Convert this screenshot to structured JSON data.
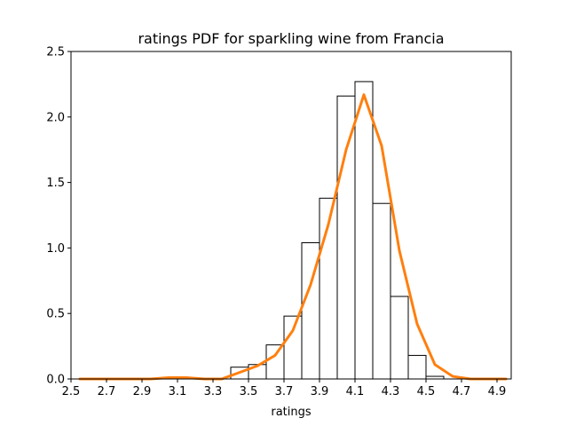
{
  "chart_data": {
    "type": "line",
    "title": "ratings PDF for sparkling wine from Francia",
    "xlabel": "ratings",
    "ylabel": "",
    "xlim": [
      2.5,
      4.98
    ],
    "ylim": [
      0,
      2.5
    ],
    "xticks": [
      "2.5",
      "2.7",
      "2.9",
      "3.1",
      "3.3",
      "3.5",
      "3.7",
      "3.9",
      "4.1",
      "4.3",
      "4.5",
      "4.7",
      "4.9"
    ],
    "yticks": [
      "0.0",
      "0.5",
      "1.0",
      "1.5",
      "2.0",
      "2.5"
    ],
    "histogram": {
      "edges": [
        3.4,
        3.5,
        3.6,
        3.7,
        3.8,
        3.9,
        4.0,
        4.1,
        4.2,
        4.3,
        4.4,
        4.5,
        4.6
      ],
      "density": [
        0.09,
        0.11,
        0.26,
        0.48,
        1.04,
        1.38,
        2.16,
        2.27,
        1.34,
        0.63,
        0.18,
        0.02
      ],
      "color": "#000000"
    },
    "series": [
      {
        "color": "#ff7f0e",
        "x": [
          2.55,
          2.65,
          2.75,
          2.85,
          2.95,
          3.05,
          3.15,
          3.25,
          3.35,
          3.45,
          3.55,
          3.65,
          3.75,
          3.85,
          3.95,
          4.05,
          4.15,
          4.25,
          4.35,
          4.45,
          4.55,
          4.65,
          4.75,
          4.85,
          4.95
        ],
        "y": [
          0.0,
          0.0,
          0.0,
          0.0,
          0.0,
          0.01,
          0.01,
          0.0,
          0.0,
          0.05,
          0.1,
          0.18,
          0.37,
          0.72,
          1.18,
          1.75,
          2.17,
          1.78,
          0.98,
          0.42,
          0.11,
          0.02,
          0.0,
          0.0,
          0.0
        ]
      }
    ],
    "grid": false,
    "legend": "none"
  }
}
